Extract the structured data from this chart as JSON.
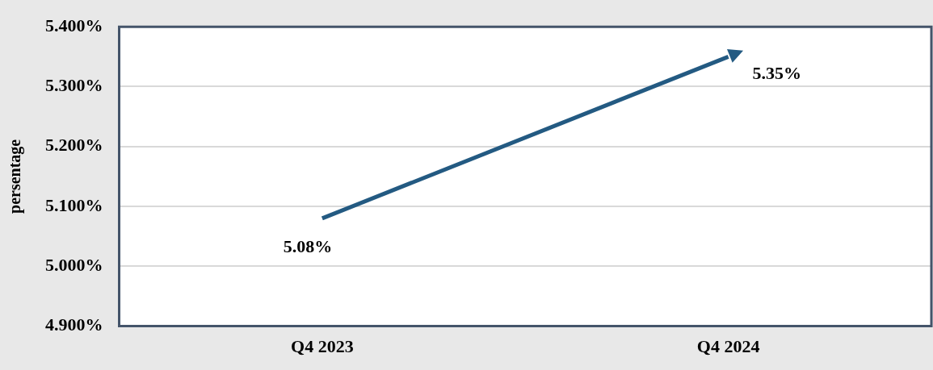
{
  "chart_data": {
    "type": "line",
    "ylabel": "persentage",
    "categories": [
      "Q4 2023",
      "Q4 2024"
    ],
    "series": [
      {
        "color": "#235a82",
        "values": [
          5.08,
          5.35
        ],
        "value_labels": [
          "5.08%",
          "5.35%"
        ]
      }
    ],
    "ylim": [
      4.9,
      5.4
    ],
    "yticks": [
      {
        "value": 4.9,
        "label": "4.900%"
      },
      {
        "value": 5.0,
        "label": "5.000%"
      },
      {
        "value": 5.1,
        "label": "5.100%"
      },
      {
        "value": 5.2,
        "label": "5.200%"
      },
      {
        "value": 5.3,
        "label": "5.300%"
      },
      {
        "value": 5.4,
        "label": "5.400%"
      }
    ],
    "grid": "y",
    "line_style": "solid",
    "legend": false
  }
}
